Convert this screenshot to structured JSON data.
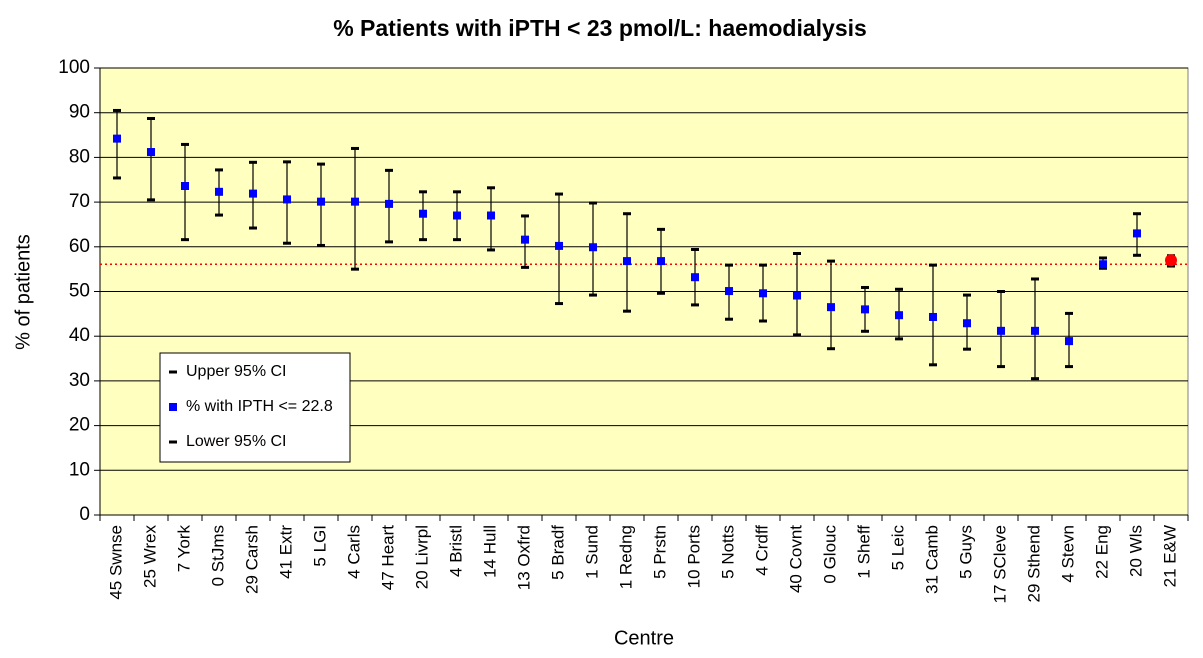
{
  "chart_data": {
    "type": "errorbar",
    "title": "% Patients with iPTH < 23 pmol/L: haemodialysis",
    "x_label": "Centre",
    "y_label": "% of patients",
    "categories": [
      "45 Swnse",
      "25 Wrex",
      "7 York",
      "0 StJms",
      "29 Carsh",
      "41 Extr",
      "5 LGI",
      "4 Carls",
      "47 Heart",
      "20 Livrpl",
      "4 Bristl",
      "14 Hull",
      "13 Oxfrd",
      "5 Bradf",
      "1 Sund",
      "1 Redng",
      "5 Prstn",
      "10 Ports",
      "5 Notts",
      "4 Crdff",
      "40 Covnt",
      "0 Glouc",
      "1 Sheff",
      "5 Leic",
      "31 Camb",
      "5 Guys",
      "17 SCleve",
      "29 Sthend",
      "4 Stevn",
      "22 Eng",
      "20 Wls",
      "21 E&W"
    ],
    "series": [
      {
        "name": "Upper 95% CI",
        "color": "#000000",
        "values": [
          90.5,
          88.7,
          82.9,
          77.2,
          78.9,
          79,
          78.5,
          82,
          77.1,
          72.3,
          72.3,
          73.2,
          66.9,
          71.8,
          69.8,
          67.4,
          63.9,
          59.4,
          55.9,
          55.9,
          58.5,
          56.8,
          50.9,
          50.5,
          55.9,
          49.2,
          50,
          52.8,
          45.1,
          57.5,
          67.4,
          58
        ]
      },
      {
        "name": "% with IPTH <= 22.8",
        "color": "#0000ff",
        "values": [
          84.2,
          81.2,
          73.6,
          72.3,
          71.9,
          70.6,
          70.1,
          70.1,
          69.6,
          67.4,
          67,
          67,
          61.6,
          60.2,
          59.9,
          56.8,
          56.8,
          53.2,
          50.1,
          49.6,
          49.1,
          46.5,
          46,
          44.7,
          44.3,
          42.9,
          41.2,
          41.2,
          38.9,
          56.1,
          63,
          57
        ],
        "point_colors": [
          "#0000ff",
          "#0000ff",
          "#0000ff",
          "#0000ff",
          "#0000ff",
          "#0000ff",
          "#0000ff",
          "#0000ff",
          "#0000ff",
          "#0000ff",
          "#0000ff",
          "#0000ff",
          "#0000ff",
          "#0000ff",
          "#0000ff",
          "#0000ff",
          "#0000ff",
          "#0000ff",
          "#0000ff",
          "#0000ff",
          "#0000ff",
          "#0000ff",
          "#0000ff",
          "#0000ff",
          "#0000ff",
          "#0000ff",
          "#0000ff",
          "#0000ff",
          "#0000ff",
          "#0000ff",
          "#0000ff",
          "#ff0000"
        ]
      },
      {
        "name": "Lower 95% CI",
        "color": "#000000",
        "values": [
          75.4,
          70.5,
          61.6,
          67.1,
          64.2,
          60.8,
          60.3,
          55,
          61.1,
          61.6,
          61.6,
          59.3,
          55.4,
          47.3,
          49.2,
          45.6,
          49.6,
          47,
          43.8,
          43.4,
          40.3,
          37.2,
          41.1,
          39.4,
          33.6,
          37.1,
          33.2,
          30.5,
          33.2,
          55.2,
          58.1,
          55.7
        ]
      }
    ],
    "reference_line": 56.1,
    "reference_color": "#ff0000",
    "ylim": [
      0,
      100
    ],
    "yticks": [
      0,
      10,
      20,
      30,
      40,
      50,
      60,
      70,
      80,
      90,
      100
    ],
    "grid": true,
    "plot_background": "#ffffc0"
  }
}
